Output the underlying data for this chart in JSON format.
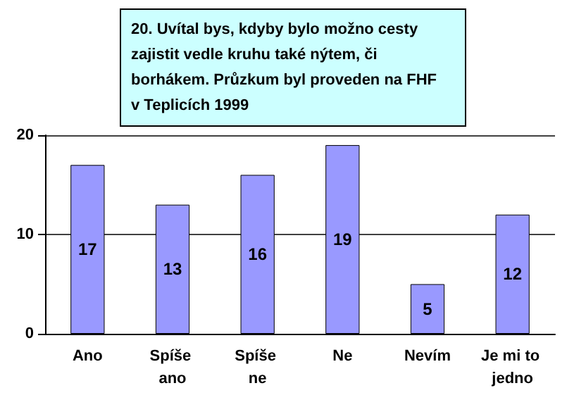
{
  "chart_data": {
    "type": "bar",
    "title": "20. Uvítal bys, kdyby bylo možno cesty zajistit vedle kruhu také nýtem, či borhákem. Průzkum byl proveden na FHF v Teplicích 1999",
    "categories": [
      "Ano",
      "Spíše ano",
      "Spíše ne",
      "Ne",
      "Nevím",
      "Je mi to jedno"
    ],
    "values": [
      17,
      13,
      16,
      19,
      5,
      12
    ],
    "color": "#9999ff",
    "ylim": [
      0,
      20
    ],
    "yticks": [
      0,
      10,
      20
    ],
    "grid": "y",
    "data_labels": true
  }
}
